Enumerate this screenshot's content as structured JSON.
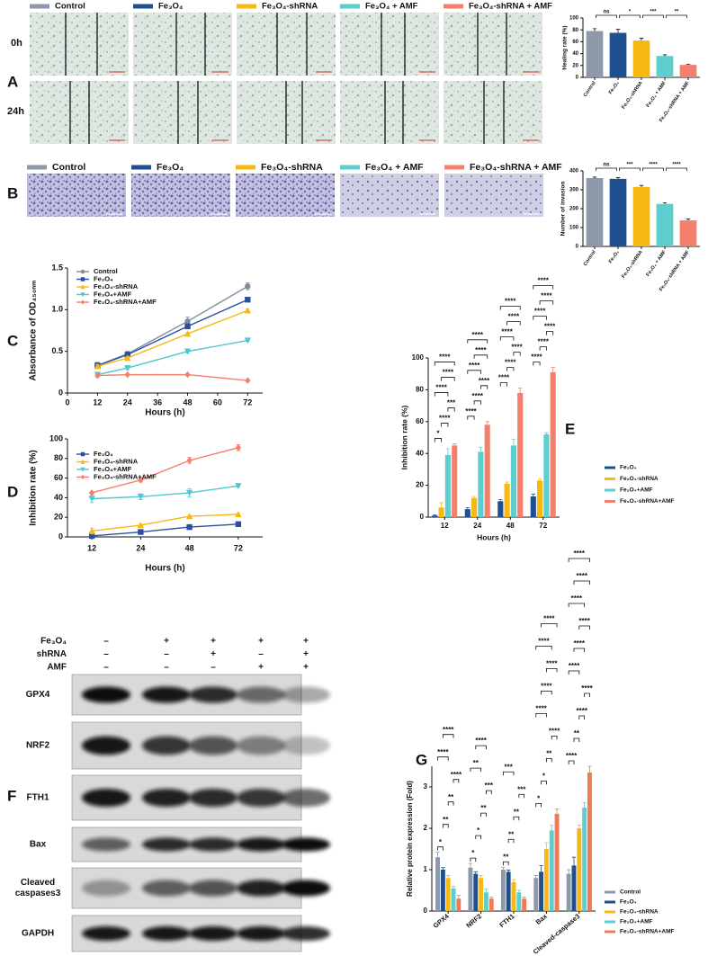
{
  "panel_labels": [
    "A",
    "B",
    "C",
    "D",
    "E",
    "F",
    "G"
  ],
  "panel_a": {
    "legend": [
      {
        "name": "Control",
        "color": "#8d99aa"
      },
      {
        "name": "Fe₃O₄",
        "color": "#1f4f8f"
      },
      {
        "name": "Fe₃O₄-shRNA",
        "color": "#f8b814"
      },
      {
        "name": "Fe₃O₄ + AMF",
        "color": "#5dcdcd"
      },
      {
        "name": "Fe₃O₄-shRNA + AMF",
        "color": "#f3806d"
      }
    ],
    "rows": [
      "0h",
      "24h"
    ]
  },
  "panel_b": {
    "legend": [
      {
        "name": "Control",
        "color": "#8d99aa"
      },
      {
        "name": "Fe₃O₄",
        "color": "#1f4f8f"
      },
      {
        "name": "Fe₃O₄-shRNA",
        "color": "#f8b814"
      },
      {
        "name": "Fe₃O₄ + AMF",
        "color": "#5dcdcd"
      },
      {
        "name": "Fe₃O₄-shRNA + AMF",
        "color": "#f3806d"
      }
    ]
  },
  "panel_f": {
    "conditions": [
      {
        "label": "Fe₃O₄",
        "signs": [
          "–",
          "+",
          "+",
          "+",
          "+"
        ]
      },
      {
        "label": "shRNA",
        "signs": [
          "–",
          "–",
          "+",
          "–",
          "+"
        ]
      },
      {
        "label": "AMF",
        "signs": [
          "–",
          "–",
          "–",
          "+",
          "+"
        ]
      }
    ],
    "blots": [
      [
        "GPX4"
      ],
      [
        "NRF2"
      ],
      [
        "FTH1"
      ],
      [
        "Bax"
      ],
      [
        "Cleaved",
        "caspases3"
      ],
      [
        "GAPDH"
      ]
    ]
  },
  "chart_data": [
    {
      "type": "bar",
      "y_label": "Healing rate (%)",
      "categories": [
        "Control",
        "Fe₃O₄",
        "Fe₃O₄-shRNA",
        "Fe₃O₄ + AMF",
        "Fe₃O₄-shRNA + AMF"
      ],
      "values": [
        78,
        75,
        62,
        36,
        21
      ],
      "errors": [
        4,
        6,
        4,
        2,
        1
      ],
      "colors": [
        "#8d99aa",
        "#1f4f8f",
        "#f8b814",
        "#5dcdcd",
        "#f3806d"
      ],
      "ylim": [
        0,
        100
      ],
      "yticks": [
        0,
        20,
        40,
        60,
        80,
        100
      ],
      "significance": [
        "ns",
        "*",
        "***",
        "**"
      ]
    },
    {
      "type": "bar",
      "y_label": "Number of invasion",
      "categories": [
        "Control",
        "Fe₃O₄",
        "Fe₃O₄-shRNA",
        "Fe₃O₄ + AMF",
        "Fe₃O₄-shRNA + AMF"
      ],
      "values": [
        362,
        358,
        315,
        225,
        138
      ],
      "errors": [
        5,
        6,
        8,
        6,
        7
      ],
      "colors": [
        "#8d99aa",
        "#1f4f8f",
        "#f8b814",
        "#5dcdcd",
        "#f3806d"
      ],
      "ylim": [
        0,
        400
      ],
      "yticks": [
        0,
        100,
        200,
        300,
        400
      ],
      "significance": [
        "ns",
        "***",
        "****",
        "****"
      ]
    },
    {
      "type": "line",
      "y_label": "Absorbance of OD₄₅₀ₙₘ",
      "x_label": "Hours (h)",
      "x": [
        12,
        24,
        48,
        72
      ],
      "xlim": [
        0,
        78
      ],
      "xticks": [
        0,
        12,
        24,
        36,
        48,
        60,
        72
      ],
      "ylim": [
        0,
        1.5
      ],
      "yticks": [
        0,
        0.5,
        {
          "value": 1,
          "label": "1.0"
        },
        1.5
      ],
      "series": [
        {
          "name": "Control",
          "color": "#7f8c9c",
          "values": [
            0.33,
            0.47,
            0.86,
            1.28
          ],
          "errors": [
            0.04,
            0.03,
            0.05,
            0.04
          ]
        },
        {
          "name": "Fe₃O₄",
          "color": "#2b4fa0",
          "values": [
            0.33,
            0.46,
            0.8,
            1.12
          ],
          "errors": [
            0.03,
            0.02,
            0.03,
            0.02
          ]
        },
        {
          "name": "Fe₃O₄-shRNA",
          "color": "#f8b814",
          "values": [
            0.32,
            0.42,
            0.71,
            0.99
          ],
          "errors": [
            0.02,
            0.02,
            0.02,
            0.02
          ]
        },
        {
          "name": "Fe₃O₄+AMF",
          "color": "#4fc8d0",
          "values": [
            0.22,
            0.3,
            0.5,
            0.63
          ],
          "errors": [
            0.02,
            0.02,
            0.02,
            0.01
          ]
        },
        {
          "name": "Fe₃O₄-shRNA+AMF",
          "color": "#f3806d",
          "values": [
            0.21,
            0.22,
            0.22,
            0.15
          ],
          "errors": [
            0.02,
            0.01,
            0.01,
            0.01
          ]
        }
      ]
    },
    {
      "type": "line",
      "y_label": "Inhibition rate (%)",
      "x_label": "Hours (h)",
      "categories": [
        "12",
        "24",
        "48",
        "72"
      ],
      "ylim": [
        0,
        100
      ],
      "yticks": [
        0,
        20,
        40,
        60,
        80,
        100
      ],
      "series": [
        {
          "name": "Fe₃O₄",
          "color": "#2b4fa0",
          "values": [
            1,
            5,
            10,
            13
          ],
          "errors": [
            0.5,
            1,
            1,
            1.5
          ]
        },
        {
          "name": "Fe₃O₄-shRNA",
          "color": "#f8b814",
          "values": [
            6,
            12,
            21,
            23
          ],
          "errors": [
            3,
            1,
            1,
            1
          ]
        },
        {
          "name": "Fe₃O₄+AMF",
          "color": "#4fc8d0",
          "values": [
            39,
            41,
            45,
            52
          ],
          "errors": [
            4,
            3,
            4,
            1
          ]
        },
        {
          "name": "Fe₃O₄-shRNA+AMF",
          "color": "#f3806d",
          "values": [
            45,
            58,
            78,
            91
          ],
          "errors": [
            1,
            2,
            3,
            3
          ]
        }
      ]
    },
    {
      "type": "bar",
      "y_label": "Inhibition rate (%)",
      "x_label": "Hours (h)",
      "categories": [
        "12",
        "24",
        "48",
        "72"
      ],
      "ylim": [
        0,
        100
      ],
      "yticks": [
        0,
        20,
        40,
        60,
        80,
        100
      ],
      "series": [
        {
          "name": "Fe₃O₄",
          "color": "#1f4f8f",
          "values": [
            1,
            5,
            10,
            13
          ],
          "errors": [
            0.5,
            1,
            1,
            1.5
          ]
        },
        {
          "name": "Fe₃O₄-shRNA",
          "color": "#f8b814",
          "values": [
            6,
            12,
            21,
            23
          ],
          "errors": [
            3,
            1,
            1,
            1
          ]
        },
        {
          "name": "Fe₃O₄+AMF",
          "color": "#5dcdcd",
          "values": [
            39,
            41,
            45,
            52
          ],
          "errors": [
            4,
            3,
            4,
            1
          ]
        },
        {
          "name": "Fe₃O₄-shRNA+AMF",
          "color": "#f3806d",
          "values": [
            45,
            58,
            78,
            91
          ],
          "errors": [
            1,
            2,
            3,
            3
          ]
        }
      ],
      "significance": [
        [
          "*",
          "****",
          "***",
          "****",
          "****",
          "****"
        ],
        [
          "****",
          "****",
          "****",
          "****",
          "****",
          "****"
        ],
        [
          "****",
          "****",
          "****",
          "****",
          "****",
          "****"
        ],
        [
          "****",
          "****",
          "****",
          "****",
          "****",
          "****"
        ]
      ]
    },
    {
      "type": "bar",
      "y_label": "Relative protein expression (Fold)",
      "categories": [
        "GPX4",
        "NRF2",
        "FTH1",
        "Bax",
        "Cleaved-caspase3"
      ],
      "ylim": [
        0,
        3.5
      ],
      "yticks": [
        0,
        1,
        2,
        3
      ],
      "series": [
        {
          "name": "Control",
          "color": "#8d99aa",
          "values": [
            1.3,
            1.05,
            1.0,
            0.8,
            0.9
          ],
          "errors": [
            0.12,
            0.1,
            0.06,
            0.06,
            0.1
          ]
        },
        {
          "name": "Fe₃O₄",
          "color": "#1f4f8f",
          "values": [
            1.0,
            0.9,
            0.95,
            0.95,
            1.1
          ],
          "errors": [
            0.05,
            0.05,
            0.04,
            0.15,
            0.2
          ]
        },
        {
          "name": "Fe₃O₄-shRNA",
          "color": "#f8b814",
          "values": [
            0.8,
            0.8,
            0.7,
            1.5,
            2.0
          ],
          "errors": [
            0.06,
            0.06,
            0.06,
            0.15,
            0.08
          ]
        },
        {
          "name": "Fe₃O₄+AMF",
          "color": "#5dcdcd",
          "values": [
            0.55,
            0.45,
            0.45,
            1.95,
            2.5
          ],
          "errors": [
            0.05,
            0.08,
            0.05,
            0.12,
            0.12
          ]
        },
        {
          "name": "Fe₃O₄-shRNA+AMF",
          "color": "#f07a56",
          "values": [
            0.3,
            0.3,
            0.3,
            2.35,
            3.35
          ],
          "errors": [
            0.08,
            0.04,
            0.04,
            0.12,
            0.15
          ]
        }
      ],
      "significance": [
        [
          "*",
          "**",
          "**",
          "****",
          "****",
          "****"
        ],
        [
          "*",
          "*",
          "**",
          "***",
          "**",
          "****"
        ],
        [
          "**",
          "**",
          "**",
          "***",
          "***"
        ],
        [
          "*",
          "*",
          "**",
          "****",
          "****",
          "****",
          "****",
          "****",
          "****"
        ],
        [
          "****",
          "**",
          "****",
          "****",
          "****",
          "****",
          "****",
          "****",
          "****",
          "****"
        ]
      ]
    }
  ]
}
